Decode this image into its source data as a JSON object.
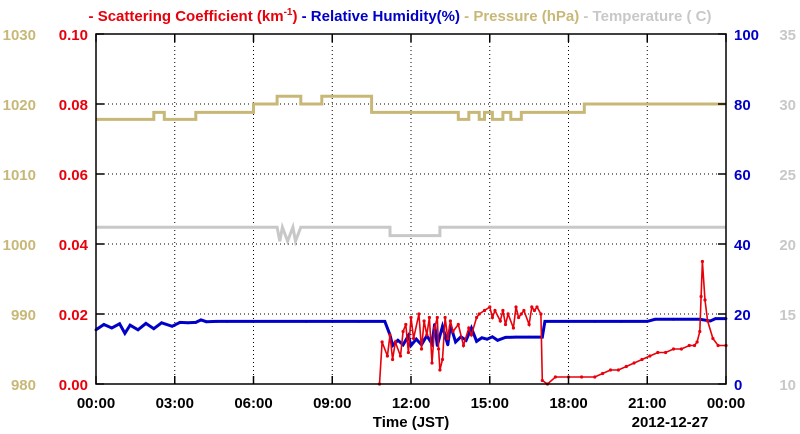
{
  "chart_data": {
    "type": "line",
    "title": "",
    "legend": [
      {
        "text": "- Scattering Coefficient (km",
        "sup": "-1",
        "tail": ")",
        "color": "#e8000b"
      },
      {
        "text": " - Relative Humidity(%)",
        "color": "#0000c8"
      },
      {
        "text": " - Pressure (hPa)",
        "color": "#c8b878"
      },
      {
        "text": " - Temperature ( C)",
        "color": "#c8c8c8"
      }
    ],
    "xlabel": "Time (JST)",
    "date_label": "2012-12-27",
    "x_ticks": [
      "00:00",
      "03:00",
      "06:00",
      "09:00",
      "12:00",
      "15:00",
      "18:00",
      "21:00",
      "00:00"
    ],
    "x_range_hours": [
      0,
      24
    ],
    "axes": {
      "pressure": {
        "ticks": [
          "980",
          "990",
          "1000",
          "1010",
          "1020",
          "1030"
        ],
        "range": [
          980,
          1030
        ],
        "color": "#c8b878"
      },
      "scattering": {
        "ticks": [
          "0.00",
          "0.02",
          "0.04",
          "0.06",
          "0.08",
          "0.10"
        ],
        "range": [
          0,
          0.1
        ],
        "color": "#e8000b"
      },
      "humidity": {
        "ticks": [
          "0",
          "20",
          "40",
          "60",
          "80",
          "100"
        ],
        "range": [
          0,
          100
        ],
        "color": "#0000c8"
      },
      "temperature": {
        "ticks": [
          "10",
          "15",
          "20",
          "25",
          "30",
          "35"
        ],
        "range": [
          10,
          35
        ],
        "color": "#c8c8c8"
      }
    },
    "grid": true,
    "series": [
      {
        "name": "Pressure (hPa)",
        "axis": "pressure",
        "color": "#c8b878",
        "x": [
          0,
          2.2,
          2.2,
          2.6,
          2.6,
          3.8,
          3.8,
          6.0,
          6.0,
          6.9,
          6.9,
          7.8,
          7.8,
          8.6,
          8.6,
          10.5,
          10.5,
          13.8,
          13.8,
          14.2,
          14.2,
          14.6,
          14.6,
          14.8,
          14.8,
          15.1,
          15.1,
          15.5,
          15.5,
          15.8,
          15.8,
          16.2,
          16.2,
          18.6,
          18.6,
          19.2,
          19.2,
          21.0,
          21.0,
          24
        ],
        "y": [
          1017.8,
          1017.8,
          1018.8,
          1018.8,
          1017.8,
          1017.8,
          1018.8,
          1018.8,
          1020.0,
          1020.0,
          1021.1,
          1021.1,
          1020.0,
          1020.0,
          1021.1,
          1021.1,
          1018.8,
          1018.8,
          1017.8,
          1017.8,
          1018.8,
          1018.8,
          1017.8,
          1017.8,
          1018.8,
          1018.8,
          1017.8,
          1017.8,
          1018.8,
          1018.8,
          1017.8,
          1017.8,
          1018.8,
          1018.8,
          1020.0,
          1020.0,
          1020.0,
          1020.0,
          1020.0,
          1020.0
        ]
      },
      {
        "name": "Temperature ( C)",
        "axis": "temperature",
        "color": "#c8c8c8",
        "x": [
          0,
          6.9,
          7.0,
          7.1,
          7.3,
          7.5,
          7.6,
          7.8,
          8.0,
          11.2,
          11.2,
          13.1,
          13.1,
          13.6,
          13.6,
          24
        ],
        "y": [
          21.2,
          21.2,
          20.2,
          21.2,
          20.2,
          21.2,
          20.2,
          21.2,
          21.2,
          21.2,
          20.6,
          20.6,
          21.2,
          21.2,
          21.2,
          21.2
        ]
      },
      {
        "name": "Relative Humidity(%)",
        "axis": "humidity",
        "color": "#0000c8",
        "x": [
          0,
          0.3,
          0.6,
          0.9,
          1.1,
          1.3,
          1.6,
          1.9,
          2.2,
          2.5,
          2.9,
          3.2,
          3.5,
          3.8,
          4.0,
          4.2,
          4.6,
          5.0,
          6.0,
          8.0,
          10.0,
          11.0,
          11.2,
          11.3,
          11.5,
          11.7,
          11.9,
          12.0,
          12.2,
          12.4,
          12.6,
          12.8,
          12.9,
          13.0,
          13.2,
          13.4,
          13.5,
          13.7,
          13.9,
          14.1,
          14.3,
          14.5,
          14.7,
          14.9,
          15.1,
          15.3,
          15.6,
          16.0,
          16.5,
          17.0,
          17.1,
          18.0,
          19.0,
          20.0,
          21.0,
          21.3,
          22.0,
          23.0,
          23.4,
          23.6,
          24.0
        ],
        "y": [
          15.5,
          17.0,
          16.0,
          17.2,
          14.5,
          16.8,
          15.5,
          17.3,
          15.8,
          17.5,
          16.5,
          17.6,
          17.5,
          17.6,
          18.3,
          17.8,
          17.9,
          17.9,
          17.9,
          17.9,
          17.9,
          17.9,
          14.0,
          11.0,
          12.5,
          11.2,
          13.8,
          11.0,
          12.8,
          11.2,
          13.8,
          11.5,
          17.0,
          11.0,
          16.5,
          11.2,
          16.8,
          12.0,
          13.5,
          12.5,
          16.0,
          12.2,
          13.2,
          12.8,
          13.5,
          12.5,
          13.3,
          13.4,
          13.4,
          13.4,
          17.9,
          17.9,
          17.9,
          17.9,
          17.9,
          18.5,
          18.5,
          18.5,
          18.0,
          18.7,
          18.7
        ]
      },
      {
        "name": "Scattering Coefficient (km-1)",
        "axis": "scattering",
        "color": "#e8000b",
        "x": [
          10.8,
          10.9,
          11.1,
          11.2,
          11.3,
          11.4,
          11.6,
          11.7,
          11.8,
          11.9,
          12.0,
          12.1,
          12.3,
          12.4,
          12.5,
          12.6,
          12.7,
          12.8,
          12.9,
          13.0,
          13.05,
          13.1,
          13.2,
          13.3,
          13.4,
          13.5,
          13.6,
          13.8,
          14.0,
          14.2,
          14.3,
          14.5,
          14.6,
          14.8,
          15.0,
          15.1,
          15.2,
          15.4,
          15.5,
          15.6,
          15.7,
          15.9,
          16.0,
          16.1,
          16.2,
          16.3,
          16.5,
          16.6,
          16.7,
          16.8,
          16.95,
          17.0,
          17.2,
          17.5,
          18.0,
          18.5,
          19.0,
          19.3,
          19.6,
          19.9,
          20.2,
          20.5,
          20.8,
          21.1,
          21.4,
          21.7,
          22.0,
          22.3,
          22.6,
          22.8,
          22.9,
          23.0,
          23.05,
          23.1,
          23.2,
          23.3,
          23.5,
          23.7,
          24.0
        ],
        "y": [
          0.0,
          0.012,
          0.008,
          0.014,
          0.007,
          0.012,
          0.008,
          0.015,
          0.017,
          0.009,
          0.019,
          0.013,
          0.02,
          0.01,
          0.018,
          0.014,
          0.019,
          0.006,
          0.016,
          0.019,
          0.01,
          0.004,
          0.007,
          0.019,
          0.013,
          0.018,
          0.015,
          0.017,
          0.011,
          0.016,
          0.014,
          0.019,
          0.02,
          0.021,
          0.022,
          0.019,
          0.021,
          0.018,
          0.021,
          0.017,
          0.02,
          0.016,
          0.022,
          0.019,
          0.02,
          0.021,
          0.017,
          0.022,
          0.021,
          0.022,
          0.02,
          0.001,
          0.0,
          0.002,
          0.002,
          0.002,
          0.002,
          0.003,
          0.004,
          0.004,
          0.005,
          0.006,
          0.007,
          0.008,
          0.009,
          0.009,
          0.01,
          0.01,
          0.011,
          0.011,
          0.012,
          0.015,
          0.025,
          0.035,
          0.024,
          0.018,
          0.013,
          0.011,
          0.011
        ]
      }
    ]
  }
}
